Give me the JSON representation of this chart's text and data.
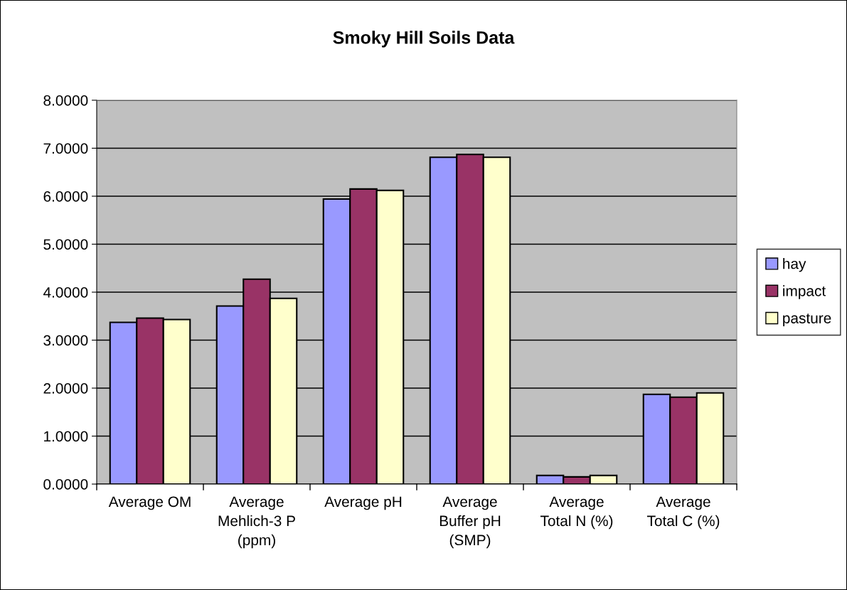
{
  "chart_data": {
    "type": "bar",
    "title": "Smoky Hill Soils Data",
    "categories": [
      "Average OM",
      "Average Mehlich-3 P (ppm)",
      "Average pH",
      "Average Buffer pH (SMP)",
      "Average Total N (%)",
      "Average Total C (%)"
    ],
    "series": [
      {
        "name": "hay",
        "color": "#9999ff",
        "values": [
          3.37,
          3.71,
          5.94,
          6.81,
          0.18,
          1.87
        ]
      },
      {
        "name": "impact",
        "color": "#993366",
        "values": [
          3.46,
          4.27,
          6.15,
          6.87,
          0.15,
          1.81
        ]
      },
      {
        "name": "pasture",
        "color": "#ffffcc",
        "values": [
          3.43,
          3.87,
          6.12,
          6.81,
          0.18,
          1.9
        ]
      }
    ],
    "ylim": [
      0,
      8
    ],
    "yticks": [
      {
        "value": 0,
        "label": "0.0000"
      },
      {
        "value": 1,
        "label": "1.0000"
      },
      {
        "value": 2,
        "label": "2.0000"
      },
      {
        "value": 3,
        "label": "3.0000"
      },
      {
        "value": 4,
        "label": "4.0000"
      },
      {
        "value": 5,
        "label": "5.0000"
      },
      {
        "value": 6,
        "label": "6.0000"
      },
      {
        "value": 7,
        "label": "7.0000"
      },
      {
        "value": 8,
        "label": "8.0000"
      }
    ],
    "grid": "y",
    "legend": "right"
  }
}
